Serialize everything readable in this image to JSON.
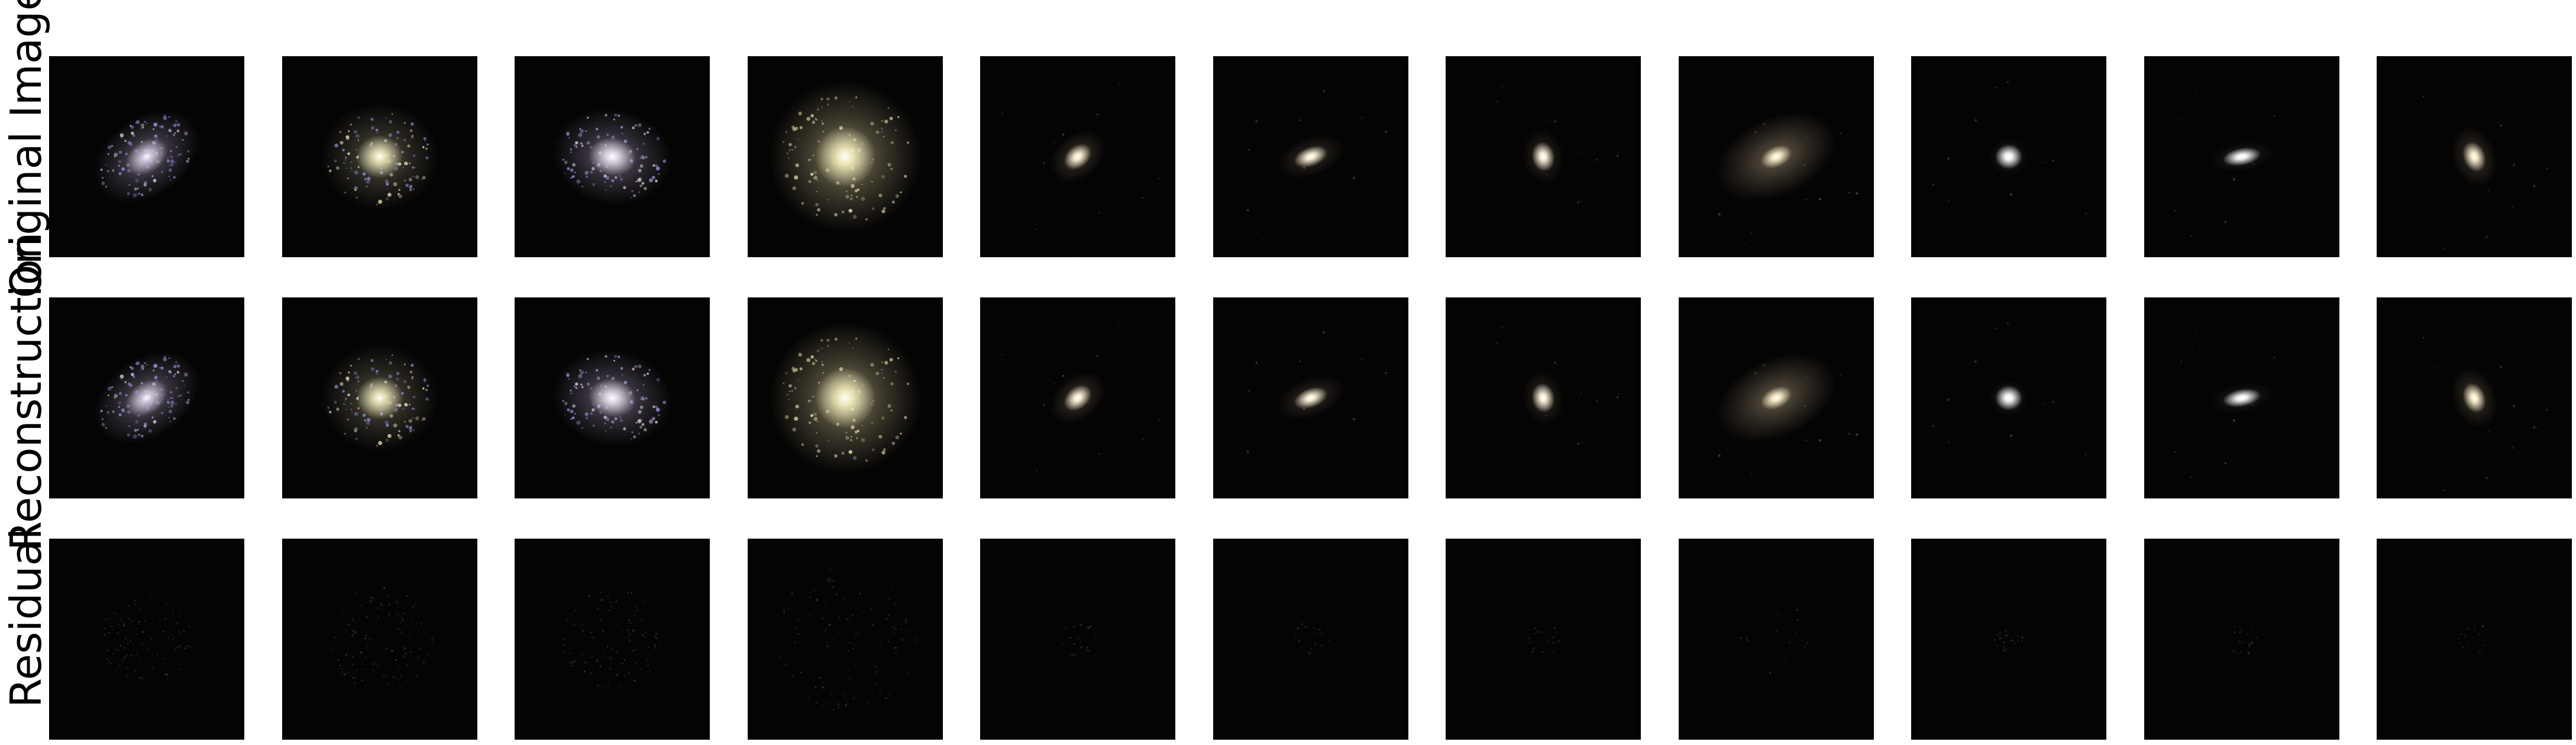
{
  "rows": [
    {
      "label": "Original Image"
    },
    {
      "label": "Reconstruction"
    },
    {
      "label": "Residual"
    }
  ],
  "galaxies": [
    {
      "kind": "spiral",
      "color": "#cfc6dc",
      "halo": "#6d6478",
      "angle": -35,
      "elong": 1.45,
      "size": 0.85,
      "knots": "#8a8fd8"
    },
    {
      "kind": "spiral",
      "color": "#e9e3b8",
      "halo": "#5e5a48",
      "angle": 0,
      "elong": 1.1,
      "size": 1.0,
      "knots": "#8c93e0"
    },
    {
      "kind": "spiral",
      "color": "#e3dbe6",
      "halo": "#6c6378",
      "angle": 10,
      "elong": 1.25,
      "size": 0.95,
      "knots": "#9a94d8"
    },
    {
      "kind": "spiral",
      "color": "#f1ecbc",
      "halo": "#8d8766",
      "angle": 0,
      "elong": 1.0,
      "size": 1.35,
      "knots": "#b9b688"
    },
    {
      "kind": "elliptical",
      "color": "#fff4d6",
      "halo": "#4a4236",
      "angle": -40,
      "elong": 1.4,
      "size": 0.55,
      "knots": "#5d6aa8"
    },
    {
      "kind": "elliptical",
      "color": "#fff6dc",
      "halo": "#3e372e",
      "angle": -20,
      "elong": 1.8,
      "size": 0.55,
      "knots": "#5a5a70"
    },
    {
      "kind": "elliptical",
      "color": "#fff7e2",
      "halo": "#3a3329",
      "angle": 80,
      "elong": 1.3,
      "size": 0.5,
      "knots": "#5a5a70"
    },
    {
      "kind": "elliptical",
      "color": "#fff2cc",
      "halo": "#6e6450",
      "angle": -25,
      "elong": 1.6,
      "size": 1.05,
      "knots": "#6a6a80"
    },
    {
      "kind": "elliptical",
      "color": "#ffffff",
      "halo": "#2e2a24",
      "angle": 0,
      "elong": 1.1,
      "size": 0.4,
      "knots": "#5a5a70"
    },
    {
      "kind": "elliptical",
      "color": "#ffffff",
      "halo": "#2e2a24",
      "angle": -10,
      "elong": 2.2,
      "size": 0.45,
      "knots": "#5a5a70"
    },
    {
      "kind": "elliptical",
      "color": "#fff3d2",
      "halo": "#4a4236",
      "angle": 70,
      "elong": 1.4,
      "size": 0.55,
      "knots": "#3d4a8a"
    }
  ]
}
